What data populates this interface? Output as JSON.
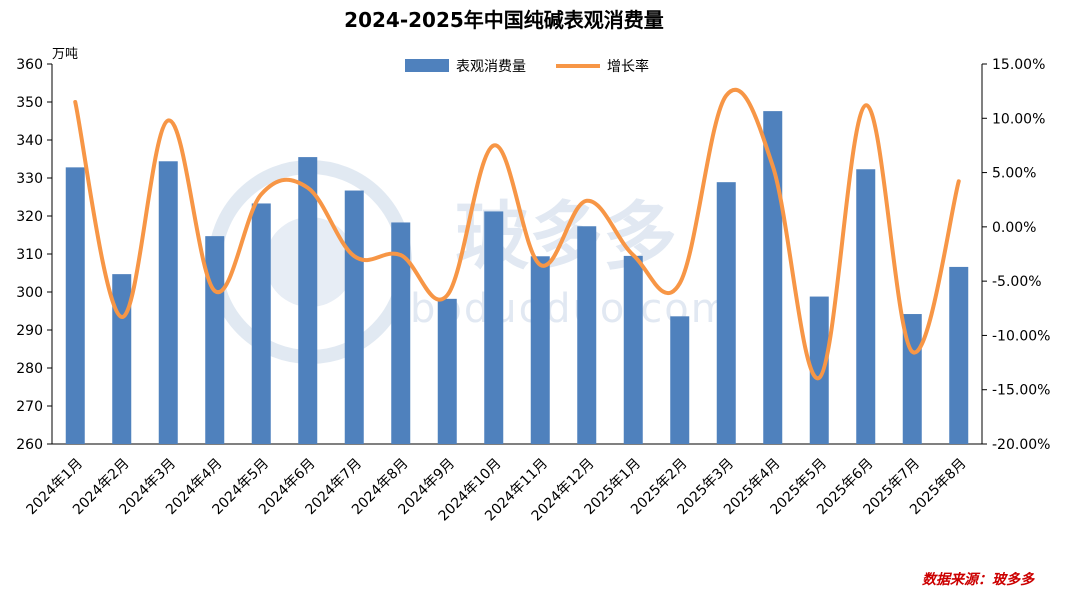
{
  "chart_data": {
    "type": "bar+line",
    "title": "2024-2025年中国纯碱表观消费量",
    "left_axis_unit": "万吨",
    "categories": [
      "2024年1月",
      "2024年2月",
      "2024年3月",
      "2024年4月",
      "2024年5月",
      "2024年6月",
      "2024年7月",
      "2024年8月",
      "2024年9月",
      "2024年10月",
      "2024年11月",
      "2024年12月",
      "2025年1月",
      "2025年2月",
      "2025年3月",
      "2025年4月",
      "2025年5月",
      "2025年6月",
      "2025年7月",
      "2025年8月"
    ],
    "series": [
      {
        "name": "表观消费量",
        "type": "bar",
        "axis": "left",
        "color": "#4f81bd",
        "values": [
          332.8,
          304.7,
          334.4,
          314.7,
          323.3,
          335.5,
          326.7,
          318.3,
          298.2,
          321.2,
          309.4,
          317.3,
          309.5,
          293.6,
          328.9,
          347.6,
          298.8,
          332.3,
          294.2,
          306.6
        ]
      },
      {
        "name": "增长率",
        "type": "line",
        "axis": "right",
        "color": "#f79646",
        "values": [
          11.5,
          -8.3,
          9.8,
          -5.9,
          3.0,
          3.6,
          -2.7,
          -2.6,
          -6.3,
          7.5,
          -3.5,
          2.4,
          -2.6,
          -5.2,
          12.1,
          5.6,
          -13.9,
          11.2,
          -11.5,
          4.2
        ]
      }
    ],
    "left_axis": {
      "min": 260,
      "max": 360,
      "step": 10,
      "ticks": [
        "260",
        "270",
        "280",
        "290",
        "300",
        "310",
        "320",
        "330",
        "340",
        "350",
        "360"
      ]
    },
    "right_axis": {
      "min": -20,
      "max": 15,
      "step": 5,
      "ticks": [
        "-20.00%",
        "-15.00%",
        "-10.00%",
        "-5.00%",
        "0.00%",
        "5.00%",
        "10.00%",
        "15.00%"
      ]
    },
    "legend": {
      "placement": "top-center",
      "items": [
        "表观消费量",
        "增长率"
      ]
    },
    "grid": false,
    "source": "数据来源：玻多多",
    "watermark": {
      "text": "玻多多",
      "subtext": "boduoduo.com"
    }
  }
}
